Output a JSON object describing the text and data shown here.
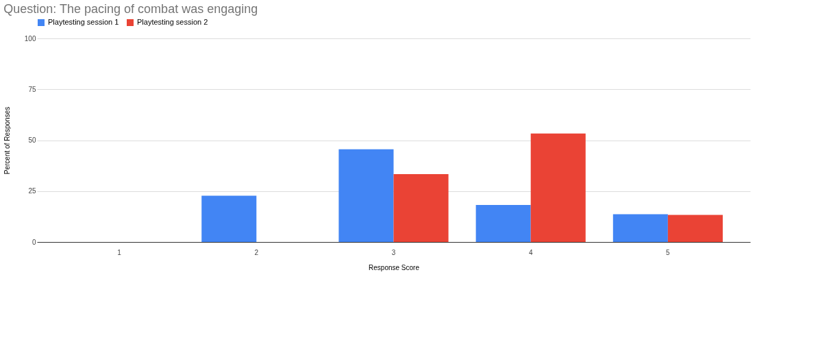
{
  "chart_data": {
    "type": "bar",
    "title": "Question: The pacing of combat was engaging",
    "xlabel": "Response Score",
    "ylabel": "Percent of Responses",
    "categories": [
      "1",
      "2",
      "3",
      "4",
      "5"
    ],
    "series": [
      {
        "name": "Playtesting session 1",
        "color": "#4285f4",
        "values": [
          0,
          22.7,
          45.5,
          18.2,
          13.6
        ]
      },
      {
        "name": "Playtesting session 2",
        "color": "#ea4335",
        "values": [
          0,
          0,
          33.3,
          53.3,
          13.3
        ]
      }
    ],
    "ylim": [
      0,
      100
    ],
    "yticks": [
      0,
      25,
      50,
      75,
      100
    ],
    "grid": "y",
    "legend": "top"
  }
}
